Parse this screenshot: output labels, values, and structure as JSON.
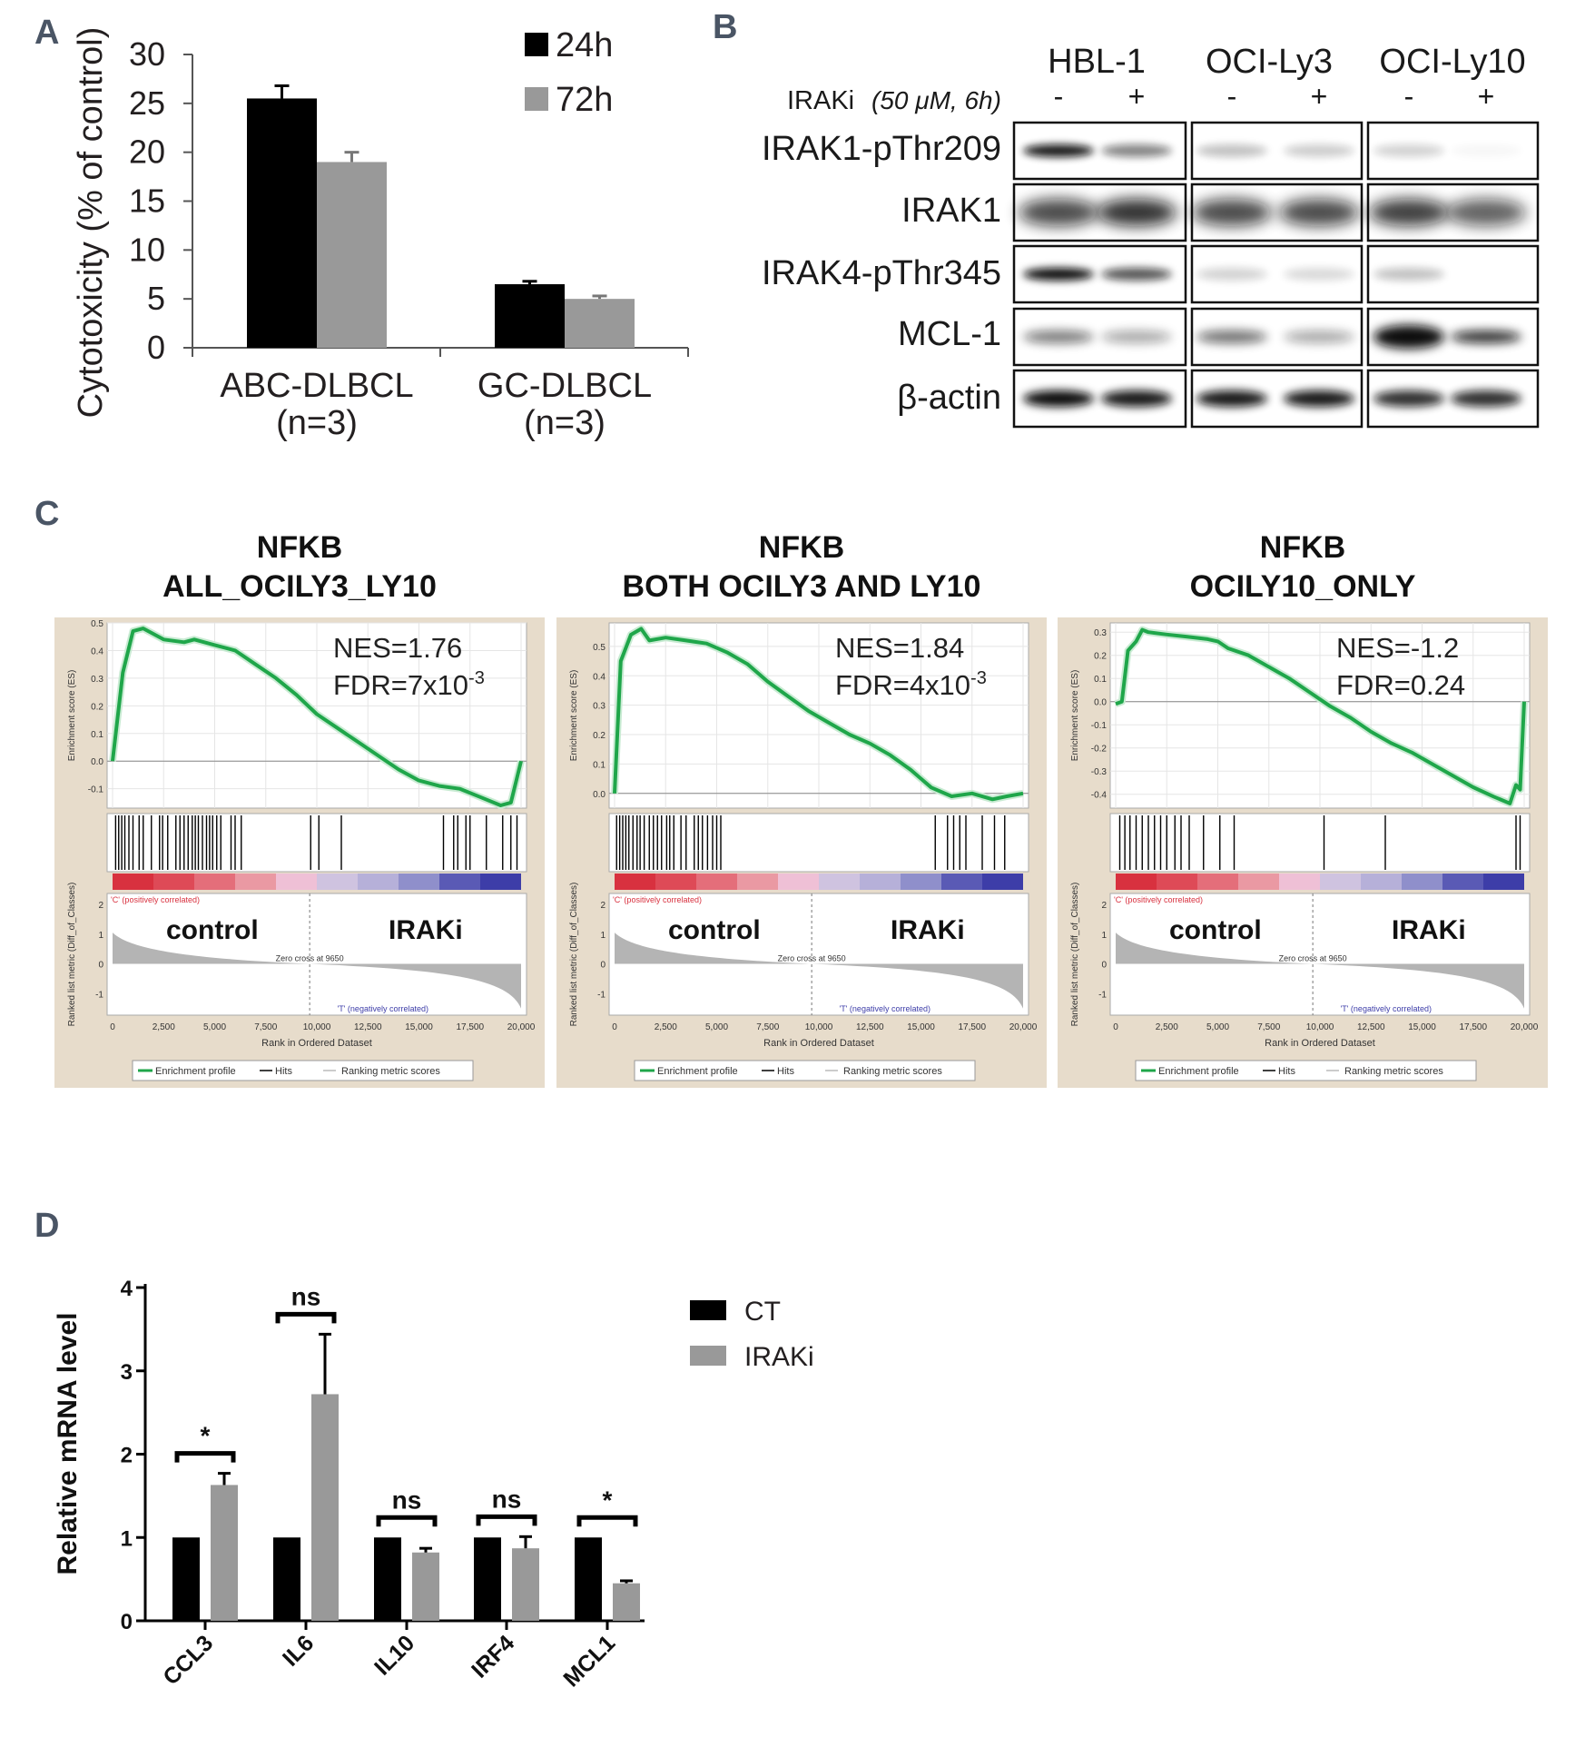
{
  "panels": {
    "A": "A",
    "B": "B",
    "C": "C",
    "D": "D"
  },
  "chart_data": [
    {
      "type": "bar",
      "panel": "A",
      "title": "",
      "ylabel": "Cytotoxicity (% of control)",
      "ylim": [
        0,
        30
      ],
      "yticks": [
        0,
        5,
        10,
        15,
        20,
        25,
        30
      ],
      "categories": [
        "ABC-DLBCL",
        "GC-DLBCL"
      ],
      "category_sub": [
        "(n=3)",
        "(n=3)"
      ],
      "series": [
        {
          "name": "24h",
          "color": "#000000",
          "values": [
            25.5,
            6.5
          ],
          "errors": [
            1.3,
            0.3
          ]
        },
        {
          "name": "72h",
          "color": "#999999",
          "values": [
            19.0,
            5.0
          ],
          "errors": [
            1.0,
            0.3
          ]
        }
      ]
    },
    {
      "type": "line",
      "panel": "C",
      "title_lines": [
        "NFKB",
        "ALL_OCILY3_LY10"
      ],
      "nes": "NES=1.76",
      "fdr_prefix": "FDR=7x10",
      "fdr_exp": "-3",
      "ylim": [
        -0.17,
        0.5
      ],
      "yticks": [
        -0.1,
        0.0,
        0.1,
        0.2,
        0.3,
        0.4,
        0.5
      ],
      "x": [
        0,
        500,
        1000,
        1500,
        2500,
        3500,
        4000,
        5000,
        6000,
        7000,
        8000,
        9000,
        10000,
        11000,
        12000,
        13000,
        14000,
        15000,
        16000,
        17000,
        18000,
        19000,
        19500,
        20000
      ],
      "y": [
        0.0,
        0.32,
        0.47,
        0.48,
        0.44,
        0.43,
        0.44,
        0.42,
        0.4,
        0.35,
        0.3,
        0.24,
        0.17,
        0.12,
        0.07,
        0.02,
        -0.03,
        -0.07,
        -0.09,
        -0.1,
        -0.13,
        -0.16,
        -0.15,
        0.0
      ],
      "hits": [
        150,
        300,
        450,
        600,
        800,
        1000,
        1300,
        1500,
        1900,
        2300,
        2450,
        2700,
        3100,
        3300,
        3500,
        3700,
        3900,
        4050,
        4200,
        4400,
        4600,
        4750,
        4900,
        5100,
        5300,
        5800,
        6000,
        6300,
        9700,
        10100,
        11200,
        16200,
        16700,
        16900,
        17300,
        17500,
        18300,
        19100,
        19500,
        19800
      ],
      "control_label": "control",
      "treat_label": "IRAKi"
    },
    {
      "type": "line",
      "panel": "C",
      "title_lines": [
        "NFKB",
        "BOTH  OCILY3  AND  LY10"
      ],
      "nes": "NES=1.84",
      "fdr_prefix": "FDR=4x10",
      "fdr_exp": "-3",
      "ylim": [
        -0.05,
        0.58
      ],
      "yticks": [
        0.0,
        0.1,
        0.2,
        0.3,
        0.4,
        0.5
      ],
      "x": [
        0,
        300,
        800,
        1300,
        1700,
        2500,
        3500,
        4500,
        5500,
        6500,
        7500,
        8500,
        9500,
        10500,
        11500,
        12500,
        13500,
        14500,
        15500,
        16500,
        17500,
        18500,
        19200,
        20000
      ],
      "y": [
        0.0,
        0.45,
        0.54,
        0.56,
        0.52,
        0.53,
        0.52,
        0.51,
        0.48,
        0.44,
        0.38,
        0.33,
        0.28,
        0.24,
        0.2,
        0.17,
        0.13,
        0.08,
        0.02,
        -0.01,
        0.0,
        -0.02,
        -0.01,
        0.0
      ],
      "hits": [
        100,
        250,
        400,
        550,
        700,
        900,
        1100,
        1250,
        1450,
        1700,
        1900,
        2100,
        2300,
        2550,
        2700,
        2900,
        3250,
        3500,
        3900,
        4100,
        4300,
        4550,
        4800,
        5000,
        5200,
        15700,
        16300,
        16600,
        16900,
        17200,
        18000,
        18600,
        19100
      ],
      "control_label": "control",
      "treat_label": "IRAKi"
    },
    {
      "type": "line",
      "panel": "C",
      "title_lines": [
        "NFKB",
        "OCILY10_ONLY"
      ],
      "nes": "NES=-1.2",
      "fdr_prefix": "FDR=0.24",
      "fdr_exp": "",
      "ylim": [
        -0.46,
        0.34
      ],
      "yticks": [
        -0.4,
        -0.3,
        -0.2,
        -0.1,
        0.0,
        0.1,
        0.2,
        0.3
      ],
      "x": [
        0,
        300,
        600,
        1000,
        1300,
        1600,
        2500,
        3500,
        4500,
        5000,
        5500,
        6500,
        7500,
        8500,
        9500,
        10500,
        11500,
        12500,
        13500,
        14500,
        15500,
        16500,
        17500,
        18500,
        19300,
        19600,
        19800,
        20000
      ],
      "y": [
        -0.01,
        0.0,
        0.22,
        0.26,
        0.31,
        0.3,
        0.29,
        0.28,
        0.27,
        0.26,
        0.23,
        0.2,
        0.15,
        0.1,
        0.04,
        -0.02,
        -0.07,
        -0.13,
        -0.18,
        -0.22,
        -0.27,
        -0.32,
        -0.37,
        -0.41,
        -0.44,
        -0.36,
        -0.38,
        0.0
      ],
      "hits": [
        200,
        450,
        700,
        1000,
        1300,
        1600,
        1900,
        2200,
        2500,
        2900,
        3200,
        3600,
        4300,
        5100,
        5800,
        10200,
        13200,
        19600,
        19800
      ],
      "control_label": "control",
      "treat_label": "IRAKi"
    },
    {
      "type": "bar",
      "panel": "D",
      "title": "",
      "ylabel": "Relative mRNA level",
      "ylim": [
        0,
        4
      ],
      "yticks": [
        0,
        1,
        2,
        3,
        4
      ],
      "categories": [
        "CCL3",
        "IL6",
        "IL10",
        "IRF4",
        "MCL1"
      ],
      "series": [
        {
          "name": "CT",
          "color": "#000000",
          "values": [
            1,
            1,
            1,
            1,
            1
          ],
          "errors": [
            0,
            0,
            0,
            0,
            0
          ]
        },
        {
          "name": "IRAKi",
          "color": "#999999",
          "values": [
            1.63,
            2.72,
            0.82,
            0.87,
            0.45
          ],
          "errors": [
            0.14,
            0.72,
            0.05,
            0.14,
            0.03
          ]
        }
      ],
      "significance": [
        "*",
        "ns",
        "ns",
        "ns",
        "*"
      ]
    }
  ],
  "gsea_common": {
    "y_axis_label": "Enrichment score (ES)",
    "metric_label": "Ranked list metric (Diff_of_Classes)",
    "x_axis_label": "Rank in Ordered Dataset",
    "x_ticks": [
      "0",
      "2,500",
      "5,000",
      "7,500",
      "10,000",
      "12,500",
      "15,000",
      "17,500",
      "20,000"
    ],
    "pos_label": "'C' (positively correlated)",
    "neg_label": "'T' (negatively correlated)",
    "zero_cross": "Zero cross at 9650",
    "metric_ticks": [
      "2",
      "1",
      "0",
      "-1"
    ],
    "legend": [
      "Enrichment profile",
      "Hits",
      "Ranking metric scores"
    ],
    "color_enrichment": "#1fa64a"
  },
  "western_blot": {
    "cell_lines": [
      "HBL-1",
      "OCI-Ly3",
      "OCI-Ly10"
    ],
    "treatment_label": "IRAKi",
    "treatment_detail": "(50 μM, 6h)",
    "lanes": [
      "-",
      "+",
      "-",
      "+",
      "-",
      "+"
    ],
    "proteins": [
      "IRAK1-pThr209",
      "IRAK1",
      "IRAK4-pThr345",
      "MCL-1",
      "β-actin"
    ]
  }
}
